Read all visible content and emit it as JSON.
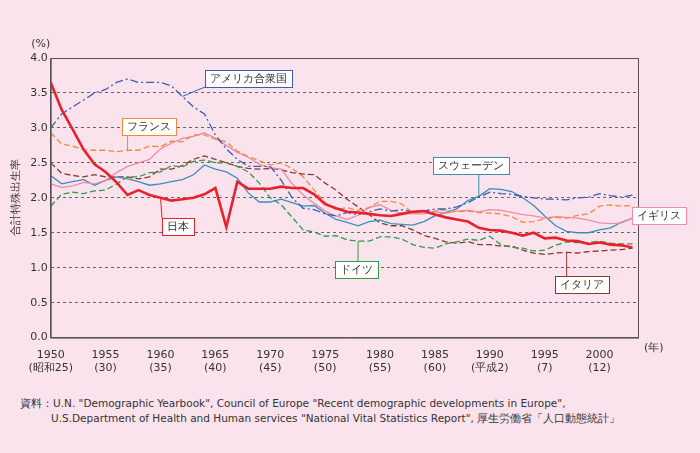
{
  "chart_data": {
    "type": "line",
    "y_label": "合計特殊出生率",
    "y_unit": "(%)",
    "x_unit": "(年)",
    "source": [
      "資料：U.N. \"Demographic Yearbook\", Council of Europe \"Recent demographic developments in Europe\",",
      "U.S.Department of Health and Human services \"National Vital Statistics Report\", 厚生労働省「人口動態統計」"
    ],
    "grid": true,
    "x": [
      1950,
      1951,
      1952,
      1953,
      1954,
      1955,
      1956,
      1957,
      1958,
      1959,
      1960,
      1961,
      1962,
      1963,
      1964,
      1965,
      1966,
      1967,
      1968,
      1969,
      1970,
      1971,
      1972,
      1973,
      1974,
      1975,
      1976,
      1977,
      1978,
      1979,
      1980,
      1981,
      1982,
      1983,
      1984,
      1985,
      1986,
      1987,
      1988,
      1989,
      1990,
      1991,
      1992,
      1993,
      1994,
      1995,
      1996,
      1997,
      1998,
      1999,
      2000,
      2001,
      2002,
      2003
    ],
    "xlim": [
      1950,
      2003.5
    ],
    "xticks": [
      {
        "value": 1950,
        "label": "1950\n(昭和25)"
      },
      {
        "value": 1955,
        "label": "1955\n(30)"
      },
      {
        "value": 1960,
        "label": "1960\n(35)"
      },
      {
        "value": 1965,
        "label": "1965\n(40)"
      },
      {
        "value": 1970,
        "label": "1970\n(45)"
      },
      {
        "value": 1975,
        "label": "1975\n(50)"
      },
      {
        "value": 1980,
        "label": "1980\n(55)"
      },
      {
        "value": 1985,
        "label": "1985\n(60)"
      },
      {
        "value": 1990,
        "label": "1990\n(平成2)"
      },
      {
        "value": 1995,
        "label": "1995\n(7)"
      },
      {
        "value": 2000,
        "label": "2000\n(12)"
      }
    ],
    "ylim": [
      0,
      4
    ],
    "yticks": [
      {
        "value": 0,
        "label": "0.0"
      },
      0.5,
      {
        "value": 1,
        "label": "1.0"
      },
      1.5,
      {
        "value": 2,
        "label": "2.0"
      },
      2.5,
      {
        "value": 3,
        "label": "3.0"
      },
      3.5,
      {
        "value": 4,
        "label": "4.0"
      }
    ],
    "series": [
      {
        "name": "日本",
        "color": "#e8222c",
        "line_style": "solid",
        "values": [
          3.65,
          3.26,
          2.98,
          2.69,
          2.48,
          2.37,
          2.22,
          2.04,
          2.11,
          2.04,
          2.0,
          1.96,
          1.98,
          2.0,
          2.05,
          2.14,
          1.58,
          2.23,
          2.13,
          2.13,
          2.13,
          2.16,
          2.14,
          2.14,
          2.05,
          1.91,
          1.85,
          1.8,
          1.79,
          1.77,
          1.75,
          1.74,
          1.77,
          1.8,
          1.81,
          1.76,
          1.72,
          1.69,
          1.66,
          1.57,
          1.54,
          1.53,
          1.5,
          1.46,
          1.5,
          1.42,
          1.43,
          1.39,
          1.38,
          1.34,
          1.36,
          1.33,
          1.32,
          1.29
        ]
      },
      {
        "name": "アメリカ合衆国",
        "color": "#3d5bb0",
        "line_style": "dashdot",
        "values": [
          3.0,
          3.2,
          3.3,
          3.4,
          3.5,
          3.55,
          3.65,
          3.7,
          3.65,
          3.65,
          3.65,
          3.6,
          3.45,
          3.3,
          3.2,
          2.9,
          2.7,
          2.55,
          2.45,
          2.45,
          2.45,
          2.25,
          2.0,
          1.85,
          1.83,
          1.77,
          1.74,
          1.79,
          1.76,
          1.8,
          1.84,
          1.81,
          1.83,
          1.8,
          1.81,
          1.84,
          1.84,
          1.87,
          1.93,
          2.01,
          2.08,
          2.06,
          2.05,
          2.02,
          2.0,
          1.98,
          1.98,
          1.97,
          2.0,
          2.01,
          2.06,
          2.03,
          2.01,
          2.04
        ]
      },
      {
        "name": "フランス",
        "color": "#f08a3a",
        "line_style": "dashed",
        "values": [
          2.93,
          2.77,
          2.74,
          2.69,
          2.68,
          2.68,
          2.66,
          2.68,
          2.68,
          2.74,
          2.73,
          2.81,
          2.8,
          2.9,
          2.9,
          2.84,
          2.8,
          2.67,
          2.59,
          2.53,
          2.47,
          2.5,
          2.42,
          2.3,
          2.11,
          1.93,
          1.83,
          1.86,
          1.82,
          1.86,
          1.95,
          1.95,
          1.91,
          1.78,
          1.8,
          1.81,
          1.83,
          1.8,
          1.81,
          1.79,
          1.78,
          1.77,
          1.73,
          1.65,
          1.66,
          1.7,
          1.72,
          1.71,
          1.75,
          1.77,
          1.88,
          1.9,
          1.88,
          1.89
        ]
      },
      {
        "name": "イギリス",
        "color": "#f08aa8",
        "line_style": "solid",
        "values": [
          2.2,
          2.15,
          2.17,
          2.22,
          2.2,
          2.25,
          2.36,
          2.45,
          2.5,
          2.55,
          2.7,
          2.78,
          2.85,
          2.88,
          2.93,
          2.85,
          2.75,
          2.65,
          2.58,
          2.48,
          2.43,
          2.41,
          2.2,
          2.04,
          1.92,
          1.81,
          1.74,
          1.69,
          1.75,
          1.86,
          1.9,
          1.82,
          1.78,
          1.77,
          1.77,
          1.8,
          1.78,
          1.81,
          1.82,
          1.8,
          1.83,
          1.82,
          1.79,
          1.76,
          1.74,
          1.71,
          1.73,
          1.72,
          1.71,
          1.68,
          1.64,
          1.63,
          1.64,
          1.71
        ]
      },
      {
        "name": "スウェーデン",
        "color": "#3a8fb8",
        "line_style": "solid",
        "values": [
          2.32,
          2.2,
          2.23,
          2.26,
          2.18,
          2.25,
          2.3,
          2.27,
          2.23,
          2.18,
          2.2,
          2.23,
          2.26,
          2.33,
          2.47,
          2.41,
          2.37,
          2.28,
          2.07,
          1.94,
          1.94,
          1.98,
          1.93,
          1.88,
          1.89,
          1.78,
          1.69,
          1.65,
          1.6,
          1.66,
          1.68,
          1.63,
          1.62,
          1.61,
          1.66,
          1.74,
          1.79,
          1.84,
          1.96,
          2.02,
          2.13,
          2.12,
          2.09,
          2.0,
          1.89,
          1.74,
          1.6,
          1.52,
          1.5,
          1.5,
          1.54,
          1.57,
          1.65,
          1.71
        ]
      },
      {
        "name": "ドイツ",
        "color": "#2e9a4a",
        "line_style": "dashed",
        "values": [
          1.88,
          2.05,
          2.08,
          2.06,
          2.1,
          2.11,
          2.2,
          2.3,
          2.3,
          2.36,
          2.37,
          2.46,
          2.44,
          2.52,
          2.54,
          2.5,
          2.5,
          2.45,
          2.37,
          2.21,
          2.0,
          1.9,
          1.72,
          1.54,
          1.51,
          1.45,
          1.46,
          1.4,
          1.38,
          1.38,
          1.44,
          1.44,
          1.41,
          1.33,
          1.29,
          1.28,
          1.34,
          1.37,
          1.41,
          1.39,
          1.45,
          1.33,
          1.29,
          1.28,
          1.24,
          1.25,
          1.32,
          1.37,
          1.36,
          1.36,
          1.38,
          1.35,
          1.34,
          1.34
        ]
      },
      {
        "name": "イタリア",
        "color": "#8b3a2a",
        "line_style": "dashed",
        "values": [
          2.5,
          2.35,
          2.32,
          2.3,
          2.33,
          2.3,
          2.3,
          2.3,
          2.27,
          2.3,
          2.41,
          2.41,
          2.46,
          2.55,
          2.6,
          2.55,
          2.5,
          2.45,
          2.42,
          2.41,
          2.42,
          2.4,
          2.36,
          2.34,
          2.33,
          2.21,
          2.11,
          1.98,
          1.87,
          1.76,
          1.64,
          1.6,
          1.6,
          1.54,
          1.46,
          1.42,
          1.37,
          1.35,
          1.37,
          1.33,
          1.33,
          1.31,
          1.31,
          1.25,
          1.21,
          1.19,
          1.21,
          1.22,
          1.21,
          1.23,
          1.24,
          1.25,
          1.26,
          1.28
        ]
      }
    ]
  }
}
